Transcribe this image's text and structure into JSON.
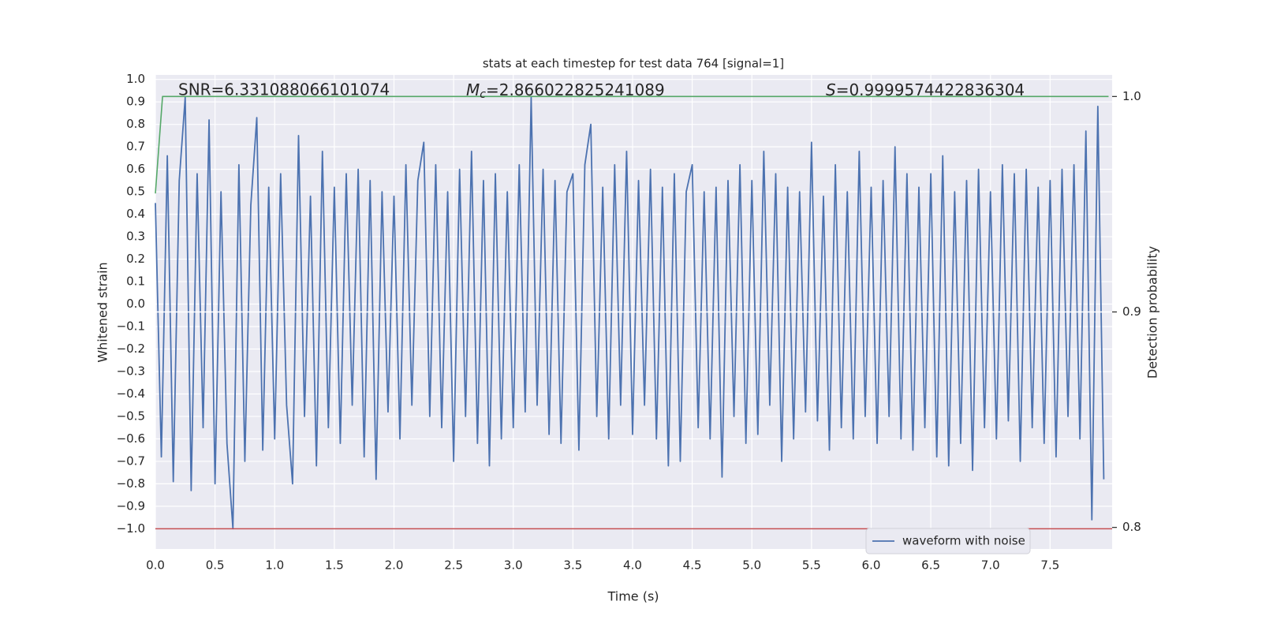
{
  "chart_data": {
    "type": "line",
    "title": "stats at each timestep for test data 764 [signal=1]",
    "xlabel": "Time (s)",
    "ylabel": "Whitened strain",
    "y2label": "Detection probability",
    "annotations": [
      {
        "text": "SNR=6.331088066101074"
      },
      {
        "symbol": "M",
        "subscript": "c",
        "text": "=2.866022825241089"
      },
      {
        "symbol": "S",
        "text": "=0.9999574422836304"
      }
    ],
    "xlim": [
      0,
      8.02
    ],
    "ylim": [
      -1.09,
      1.02
    ],
    "y2lim": [
      0.79,
      1.01
    ],
    "xticks": [
      {
        "value": 0,
        "label": "0.0"
      },
      0.5,
      {
        "value": 1,
        "label": "1.0"
      },
      1.5,
      {
        "value": 2,
        "label": "2.0"
      },
      2.5,
      {
        "value": 3,
        "label": "3.0"
      },
      3.5,
      {
        "value": 4,
        "label": "4.0"
      },
      4.5,
      {
        "value": 5,
        "label": "5.0"
      },
      5.5,
      {
        "value": 6,
        "label": "6.0"
      },
      6.5,
      {
        "value": 7,
        "label": "7.0"
      },
      7.5
    ],
    "yticks": [
      {
        "value": -1.0,
        "label": "−1.0"
      },
      {
        "value": -0.9,
        "label": "−0.9"
      },
      {
        "value": -0.8,
        "label": "−0.8"
      },
      {
        "value": -0.7,
        "label": "−0.7"
      },
      {
        "value": -0.6,
        "label": "−0.6"
      },
      {
        "value": -0.5,
        "label": "−0.5"
      },
      {
        "value": -0.4,
        "label": "−0.4"
      },
      {
        "value": -0.3,
        "label": "−0.3"
      },
      {
        "value": -0.2,
        "label": "−0.2"
      },
      {
        "value": -0.1,
        "label": "−0.1"
      },
      {
        "value": 0,
        "label": "0.0"
      },
      0.1,
      0.2,
      0.3,
      0.4,
      0.5,
      0.6,
      0.7,
      0.8,
      0.9,
      {
        "value": 1,
        "label": "1.0"
      }
    ],
    "y2ticks": [
      0.8,
      0.9,
      {
        "value": 1,
        "label": "1.0"
      }
    ],
    "grid": true,
    "legend": "lower right",
    "series": [
      {
        "name": "waveform with noise",
        "color": "#4c72b0",
        "x": [
          0,
          0.05,
          0.1,
          0.15,
          0.2,
          0.25,
          0.3,
          0.35,
          0.4,
          0.45,
          0.5,
          0.55,
          0.6,
          0.65,
          0.7,
          0.75,
          0.8,
          0.85,
          0.9,
          0.95,
          1,
          1.05,
          1.1,
          1.15,
          1.2,
          1.25,
          1.3,
          1.35,
          1.4,
          1.45,
          1.5,
          1.55,
          1.6,
          1.65,
          1.7,
          1.75,
          1.8,
          1.85,
          1.9,
          1.95,
          2,
          2.05,
          2.1,
          2.15,
          2.2,
          2.25,
          2.3,
          2.35,
          2.4,
          2.45,
          2.5,
          2.55,
          2.6,
          2.65,
          2.7,
          2.75,
          2.8,
          2.85,
          2.9,
          2.95,
          3,
          3.05,
          3.1,
          3.15,
          3.2,
          3.25,
          3.3,
          3.35,
          3.4,
          3.45,
          3.5,
          3.55,
          3.6,
          3.65,
          3.7,
          3.75,
          3.8,
          3.85,
          3.9,
          3.95,
          4,
          4.05,
          4.1,
          4.15,
          4.2,
          4.25,
          4.3,
          4.35,
          4.4,
          4.45,
          4.5,
          4.55,
          4.6,
          4.65,
          4.7,
          4.75,
          4.8,
          4.85,
          4.9,
          4.95,
          5,
          5.05,
          5.1,
          5.15,
          5.2,
          5.25,
          5.3,
          5.35,
          5.4,
          5.45,
          5.5,
          5.55,
          5.6,
          5.65,
          5.7,
          5.75,
          5.8,
          5.85,
          5.9,
          5.95,
          6,
          6.05,
          6.1,
          6.15,
          6.2,
          6.25,
          6.3,
          6.35,
          6.4,
          6.45,
          6.5,
          6.55,
          6.6,
          6.65,
          6.7,
          6.75,
          6.8,
          6.85,
          6.9,
          6.95,
          7,
          7.05,
          7.1,
          7.15,
          7.2,
          7.25,
          7.3,
          7.35,
          7.4,
          7.45,
          7.5,
          7.55,
          7.6,
          7.65,
          7.7,
          7.75,
          7.8,
          7.85,
          7.9,
          7.95
        ],
        "values": [
          0.45,
          -0.68,
          0.66,
          -0.79,
          0.55,
          0.92,
          -0.83,
          0.58,
          -0.55,
          0.82,
          -0.8,
          0.5,
          -0.62,
          -1.0,
          0.62,
          -0.7,
          0.44,
          0.83,
          -0.65,
          0.52,
          -0.6,
          0.58,
          -0.45,
          -0.8,
          0.75,
          -0.5,
          0.48,
          -0.72,
          0.68,
          -0.55,
          0.52,
          -0.62,
          0.58,
          -0.45,
          0.6,
          -0.68,
          0.55,
          -0.78,
          0.5,
          -0.48,
          0.48,
          -0.6,
          0.62,
          -0.45,
          0.55,
          0.72,
          -0.5,
          0.62,
          -0.55,
          0.5,
          -0.7,
          0.6,
          -0.5,
          0.68,
          -0.62,
          0.55,
          -0.72,
          0.58,
          -0.6,
          0.5,
          -0.55,
          0.62,
          -0.48,
          0.92,
          -0.45,
          0.6,
          -0.58,
          0.55,
          -0.62,
          0.5,
          0.58,
          -0.65,
          0.62,
          0.8,
          -0.5,
          0.52,
          -0.6,
          0.62,
          -0.45,
          0.68,
          -0.58,
          0.55,
          -0.45,
          0.6,
          -0.6,
          0.52,
          -0.72,
          0.58,
          -0.7,
          0.5,
          0.62,
          -0.55,
          0.5,
          -0.6,
          0.52,
          -0.77,
          0.55,
          -0.5,
          0.62,
          -0.62,
          0.55,
          -0.58,
          0.68,
          -0.45,
          0.58,
          -0.7,
          0.52,
          -0.6,
          0.5,
          -0.48,
          0.72,
          -0.52,
          0.48,
          -0.65,
          0.62,
          -0.55,
          0.5,
          -0.6,
          0.68,
          -0.5,
          0.52,
          -0.62,
          0.55,
          -0.5,
          0.7,
          -0.6,
          0.58,
          -0.65,
          0.52,
          -0.55,
          0.58,
          -0.68,
          0.66,
          -0.72,
          0.5,
          -0.62,
          0.55,
          -0.74,
          0.6,
          -0.55,
          0.5,
          -0.6,
          0.62,
          -0.52,
          0.58,
          -0.7,
          0.6,
          -0.55,
          0.52,
          -0.62,
          0.55,
          -0.68,
          0.6,
          -0.5,
          0.62,
          -0.6,
          0.77,
          -0.96,
          0.88,
          -0.78
        ]
      },
      {
        "color": "#55a868",
        "axis": "y2",
        "x": [
          0,
          0.06,
          7.99
        ],
        "values": [
          0.955,
          1.0,
          1.0
        ]
      }
    ],
    "hlines": [
      {
        "value": -1.0,
        "color": "#c44e52"
      },
      {
        "value": 0.9,
        "axis": "y2",
        "color": "#ffffff"
      }
    ]
  }
}
